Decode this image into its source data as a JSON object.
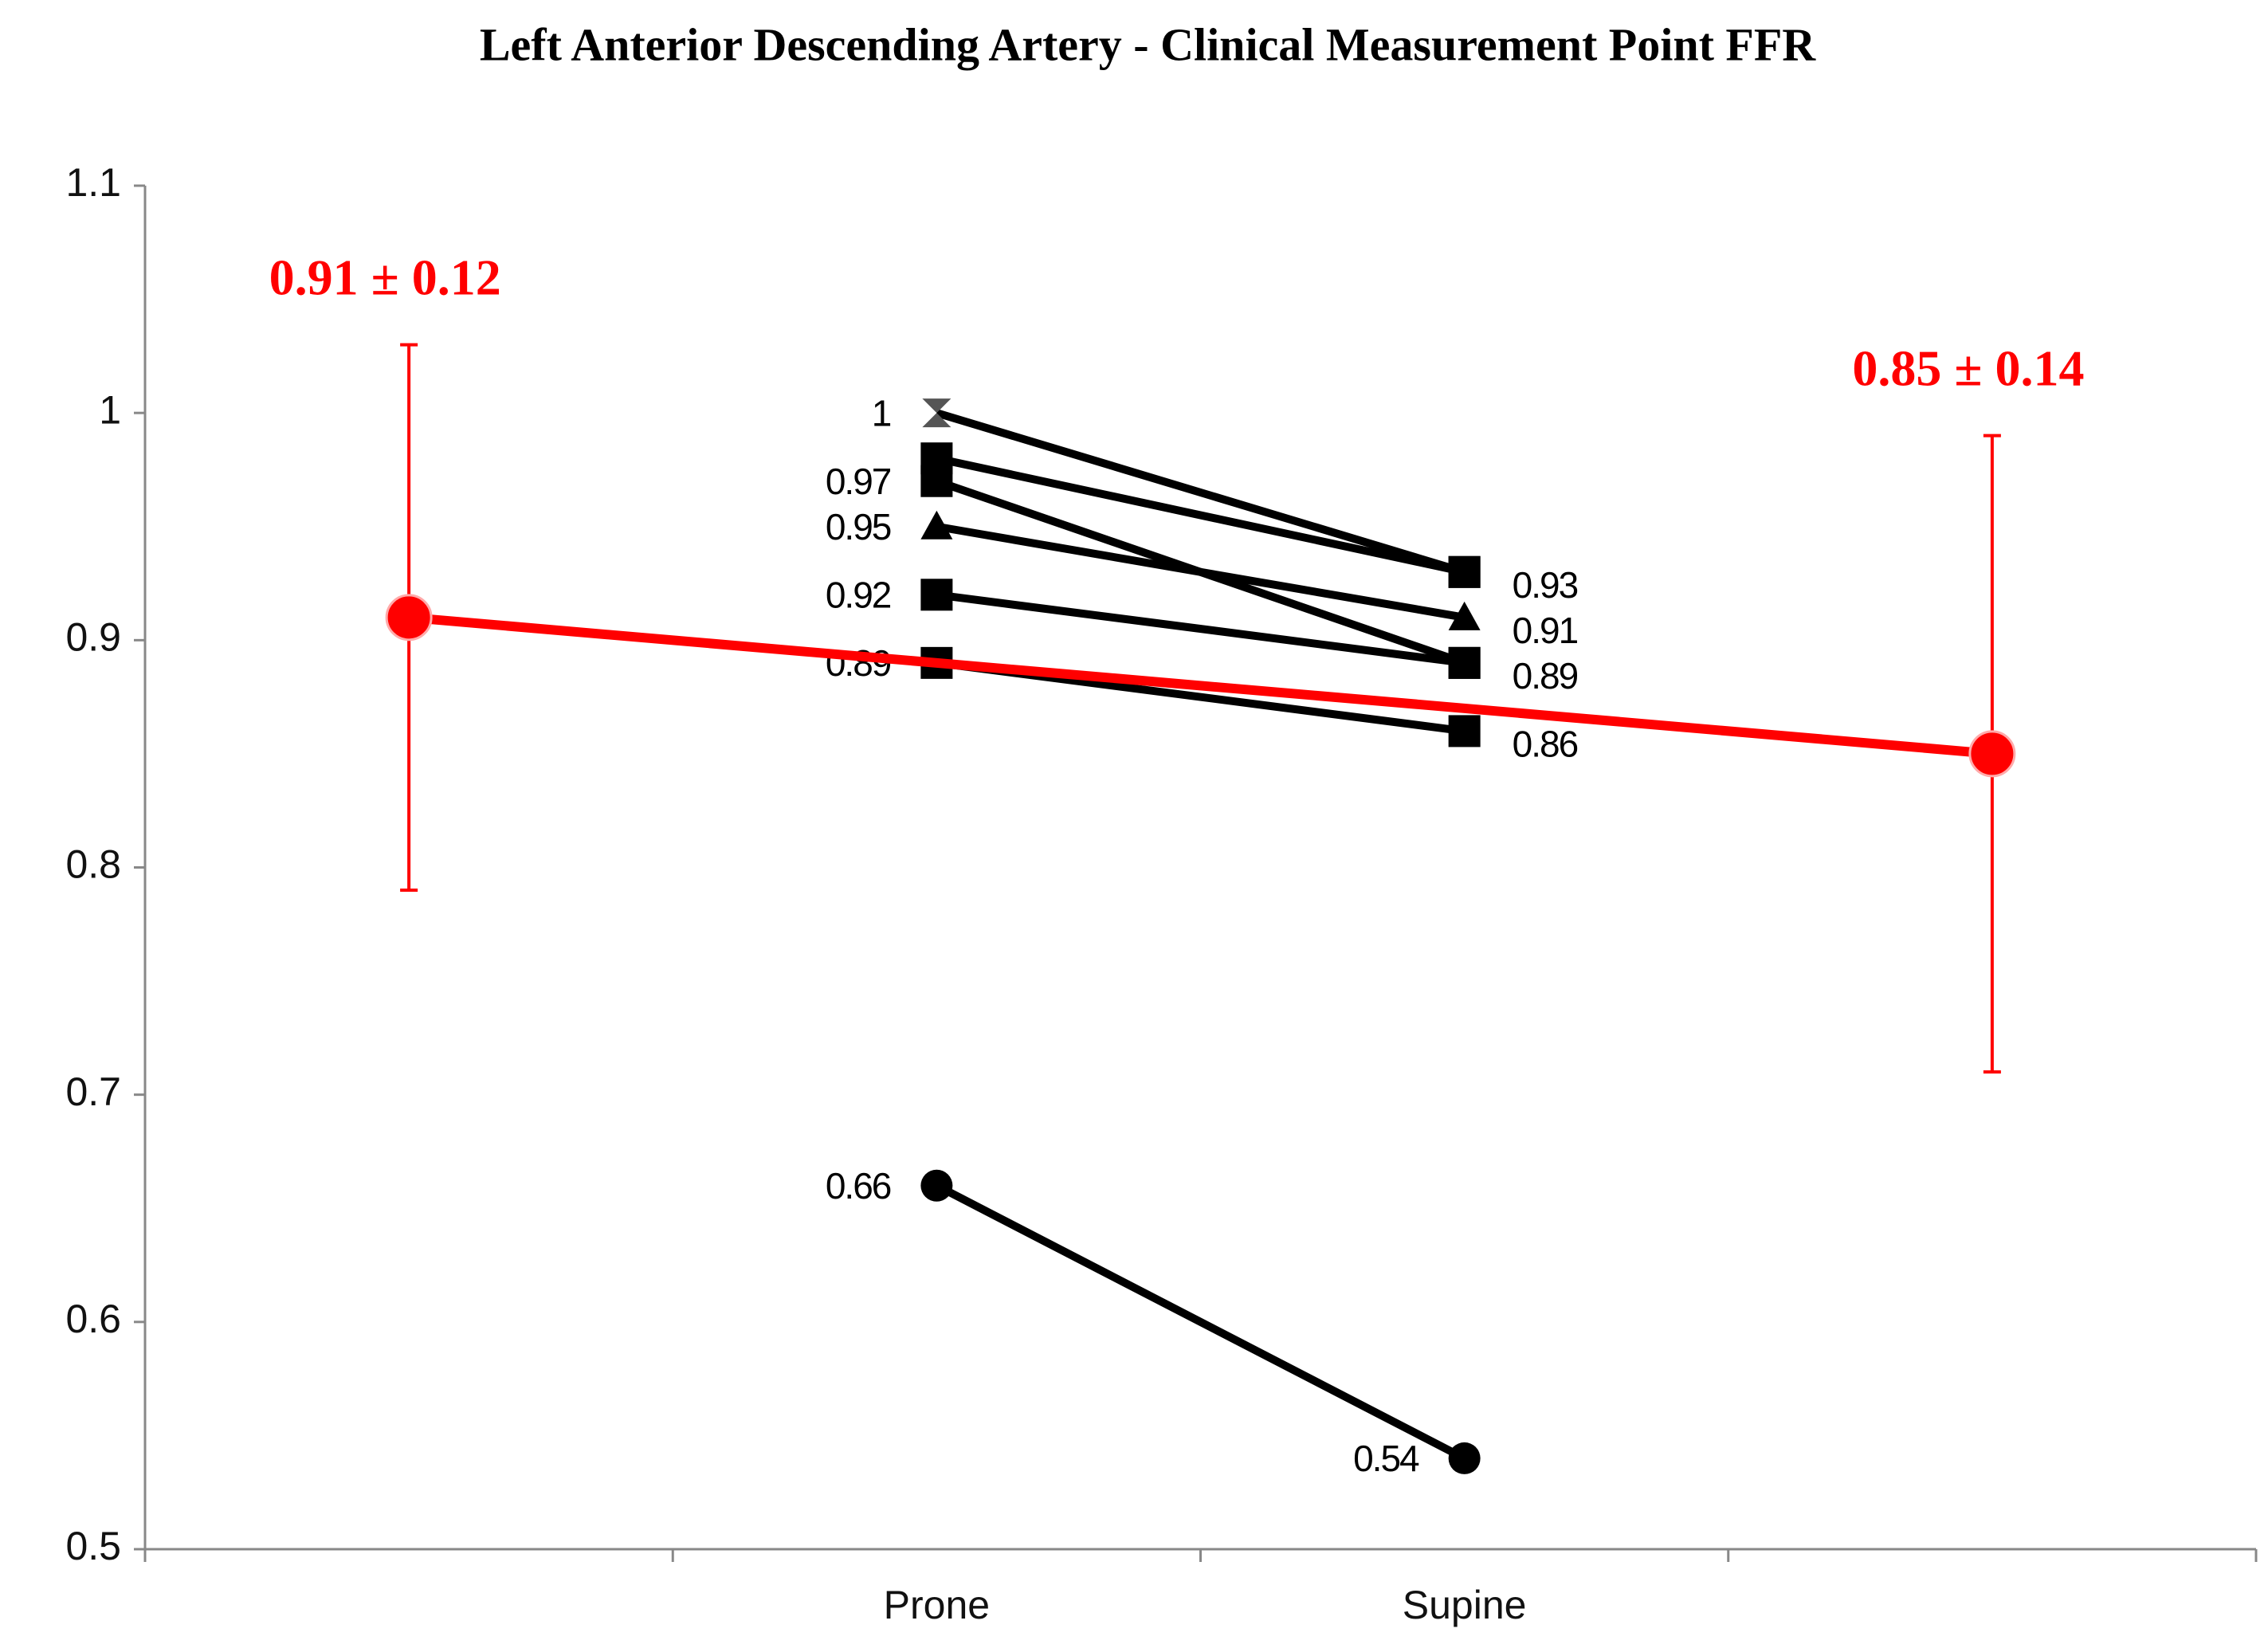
{
  "chart_data": {
    "type": "line",
    "title": "Left Anterior Descending Artery - Clinical Measurement Point FFR",
    "categories": [
      null,
      "Prone",
      "Supine",
      null
    ],
    "ylim": [
      0.5,
      1.1
    ],
    "yticks": [
      0.5,
      0.6,
      0.7,
      0.8,
      0.9,
      1,
      1.1
    ],
    "grid": false,
    "series": [
      {
        "color": "#000000",
        "values": [
          null,
          1,
          0.93,
          null
        ],
        "markers": [
          null,
          "hourglass",
          "square",
          null
        ],
        "marker_colors": [
          null,
          "#555555",
          "#000000",
          null
        ],
        "value_labels": [
          null,
          "1",
          "0.93",
          null
        ]
      },
      {
        "color": "#000000",
        "values": [
          null,
          0.98,
          0.93,
          null
        ],
        "markers": [
          null,
          "square",
          "square",
          null
        ]
      },
      {
        "color": "#000000",
        "values": [
          null,
          0.97,
          0.89,
          null
        ],
        "markers": [
          null,
          "square",
          "square",
          null
        ],
        "value_labels": [
          null,
          "0.97",
          "0.89",
          null
        ]
      },
      {
        "color": "#000000",
        "values": [
          null,
          0.95,
          0.91,
          null
        ],
        "markers": [
          null,
          "triangle",
          "triangle",
          null
        ],
        "value_labels": [
          null,
          "0.95",
          "0.91",
          null
        ]
      },
      {
        "color": "#000000",
        "values": [
          null,
          0.92,
          0.89,
          null
        ],
        "markers": [
          null,
          "square",
          "square",
          null
        ],
        "value_labels": [
          null,
          "0.92",
          null,
          null
        ]
      },
      {
        "color": "#000000",
        "values": [
          null,
          0.89,
          0.86,
          null
        ],
        "markers": [
          null,
          "square",
          "square",
          null
        ],
        "value_labels": [
          null,
          "0.89",
          "0.86",
          null
        ]
      },
      {
        "color": "#000000",
        "values": [
          null,
          0.66,
          0.54,
          null
        ],
        "markers": [
          null,
          "circle",
          "circle",
          null
        ],
        "value_labels": [
          null,
          "0.66",
          "0.54",
          null
        ]
      },
      {
        "color": "#ff0000",
        "values": [
          0.91,
          null,
          null,
          0.85
        ],
        "errors": [
          0.12,
          null,
          null,
          0.14
        ],
        "markers": [
          "circle",
          null,
          null,
          "circle"
        ],
        "connect_gaps": true,
        "value_labels": [
          "0.91 ± 0.12",
          null,
          null,
          "0.85 ± 0.14"
        ]
      }
    ]
  }
}
